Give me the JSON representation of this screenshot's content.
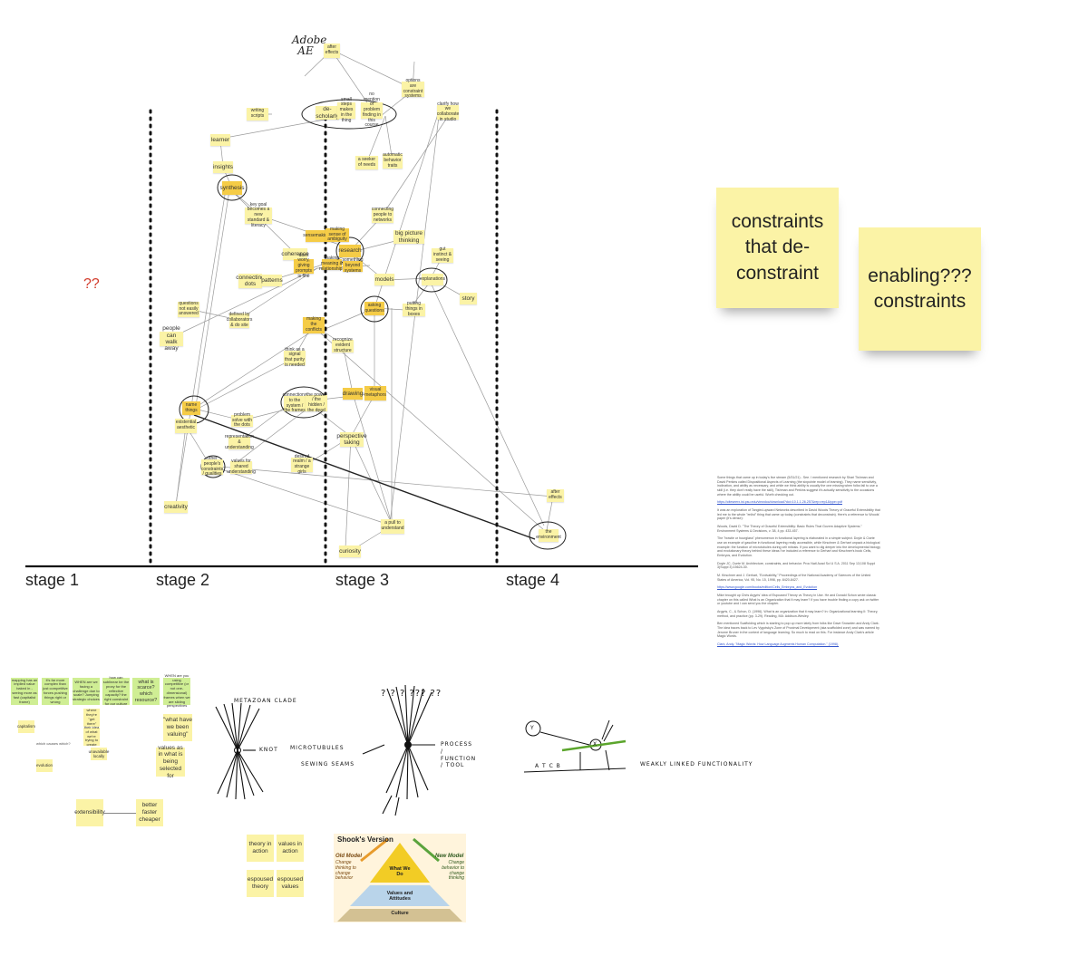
{
  "stages": [
    "stage 1",
    "stage 2",
    "stage 3",
    "stage 4"
  ],
  "question_marks": "??",
  "handwriting": {
    "adobe_ae": "Adobe AE"
  },
  "nodes": {
    "after_effects_top": "after effects",
    "options_are_constraints": "options are constraint systems",
    "writing_scripts": "writing scripts",
    "de_scholarly": "de-scholarly",
    "small_steps": "small steps makes in the thing",
    "no_mention": "no mention of problem finding in this course",
    "clarify_how": "clarify how we collaborate in studio",
    "learner": "learner",
    "insights": "insights",
    "seeker_of_needs": "a seeker of needs",
    "automatic_behavior": "automatic behavior traits",
    "synthesis": "synthesis",
    "key_goal": "key goal becomes a new standard & literacy",
    "connecting_people": "connecting people to networks",
    "big_picture": "big picture thinking",
    "sensemaking": "sensemaking",
    "making_sense": "making sense of ambiguity",
    "research": "research",
    "coherence": "coherence",
    "gut_instinct": "gut instinct & seeing",
    "dont_worry": "don't worry, giving prompts is fine",
    "tiny_1": "making meaning & relationships",
    "tiny_2": "something beyond systems",
    "connecting_dots": "connecting dots",
    "patterns": "patterns",
    "models": "models",
    "explanations": "explanations",
    "story": "story",
    "asking_questions": "asking questions",
    "putting_things": "putting things in boxes",
    "question_not": "questions not easily answered",
    "defined_by": "defined by collaborators & do site",
    "making_conflicts": "making the conflicts",
    "people_can": "people can walk away",
    "think_as_signal": "think as a signal that purity is needed",
    "recognize": "recognize evident structure",
    "drawing": "drawing",
    "visual_metaphors": "visual metaphors",
    "name_things": "name things",
    "existential": "existential aesthetic",
    "connections": "connections to the system / the frames",
    "the_power": "the power / the hidden / the dead",
    "problem_solve": "problem solve with the dots",
    "perspective": "perspective taking",
    "representation": "representation & understanding",
    "other_people": "other people's constraints / qualities",
    "values_for_shared": "values for shared understanding",
    "desired_realm": "desired realm / a strange girls",
    "after_effects_right": "after effects",
    "creativity": "creativity",
    "a_pull": "a pull to understand",
    "curiosity": "curiosity",
    "the_environment": "the environment"
  },
  "big_stickies": {
    "left": "constraints that de-constraint",
    "right": "enabling??? constraints"
  },
  "notes": {
    "p1": "Some things that came up in today's live stream (5/31/21) - See. I mentioned research by Shari Tishman and David Perkins called Dispositional Aspects of Learning (the sixpointe model of learning). They name sensitivity, inclination, and ability as necessary, and while we think ability is usually the one missing when folks fail to use a skill (i.e. they don't really have the skill), Tishman and Perkins suggest it's actually sensitivity to the occasions where the ability could be useful. Worth checking out.",
    "p1_link": "https://citeseerx.ist.psu.edu/viewdoc/download?doi=10.1.1.26.257&rep=rep1&type=pdf",
    "p2": "It was an exploration of Tangled-upward Networks described in David Woods Theory of Graceful Extensibility that led me to the whole \"enlist\" thing that came up today (constraints that deconstrain). Here's a reference to Woods' paper (it's dense):",
    "p2_cite": "Woods, David D. \"The Theory of Graceful Extensibility: Basic Rules That Govern Adaptive Systems.\" Environment Systems & Decisions, v. 38, 4 pp. 433-457.",
    "p3": "The \"bowtie or hourglass\" phenomenon in functional layering is elaborated in a simple subject. Doyle & Csete use an example of gasoline in functional layering really accessible, while Kirschner & Gerhart unpack a biological example: the function of microtubules during cell mitosis. If you want to dig deeper into the developmental biology and evolutionary theory behind these ideas I've included a reference to Gerhart and Kirschner's book Cells, Embryos, and Evolution.",
    "p3_cite1": "Doyle JC, Csete M. Architecture, constraints, and behavior. Proc Natl Acad Sci U S A. 2011 Sep 13;108 Suppl 3(Suppl 3):15624-30.",
    "p3_cite2": "M. Kirschner and J. Gerhart, \"Evolvability,\" Proceedings of the National Academy of Sciences of the United States of America, Vol. 95, No. 15, 1998, pp. 8420-8427.",
    "p3_link": "https://www.google.com/books/edition/Cells_Embryos_and_Evolution",
    "p4": "Mike brought up Chris Argyris' idea of Espoused Theory vs Theory in Use. He and Donald Schon wrote classic chapter on this called What Is an Organization that It may learn? If you have trouble finding a copy ask on twitter or youtube and I can send you the chapter.",
    "p4_cite": "Argyris, C., & Schon, D. (1996). What is an organization that it may learn? In: Organizational learning II: Theory, method, and practice (pp. 3-29). Reading, MA: Addison-Wesley.",
    "p5": "Ben mentioned Scaffolding which is starting to pop up more lately from folks like Dave Snowden and Andy Clark. The idea traces back to Lev Vygotsky's Zone of Proximal Development (aka scaffolded zone) and was named by Jerome Bruner in the context of language learning. So much to read on this. For instance Andy Clark's article Magic Words.",
    "p5_link": "Clark, Andy. \"Magic Words: How Language Augments Human Computation.\" (1998)."
  },
  "green_row": [
    "mapping has an implied value baked in - seeing more as fast (capitalist frame)",
    "it's far more complex than just competitive forces pushing things right or wrong",
    "WHEN are we facing a challenge due to scale? Jumping strategic choices",
    "how can sublinear be the proxy for the reflective capacity? the right constraint for our culture",
    "what is scarce? which resource?",
    "WHEN are you using competitive (or not one-dimensional) frames when we are sliding perspectives"
  ],
  "yellow_cluster": {
    "what_have": "\"what have we been valuing\"",
    "values_as_in": "values as in what is being selected for",
    "better": "better faster cheaper",
    "extensibility": "extensibility",
    "capitalism": "capitalism",
    "evolution": "evolution",
    "which_causes": "which causes which?",
    "where_they": "where they're \"get there\"",
    "their_idea": "their idea of what we're trying to create",
    "unavailable": "unavailable locally"
  },
  "sketch": {
    "metazoan": "METAZOAN CLADE",
    "knot": "KNOT",
    "microtubules": "MICROTUBULES",
    "sewing": "SEWING SEAMS",
    "process": "PROCESS / FUNCTION / TOOL",
    "qmarks": "? ? ? ??? ??",
    "weakly": "WEAKLY LINKED FUNCTIONALITY",
    "y_label": "Y",
    "x_label": "X",
    "atcb": "A   T   C   B"
  },
  "theory_stickies": [
    "theory in action",
    "values in action",
    "espoused theory",
    "espoused values"
  ],
  "pyramid": {
    "title": "Shook's Version",
    "old_model": "Old Model",
    "old_desc": "Change thinking to change behavior",
    "new_model": "New Model",
    "new_desc": "Change behavior to change thinking",
    "top": "What We Do",
    "middle": "Values and Attitudes",
    "bottom": "Culture"
  }
}
